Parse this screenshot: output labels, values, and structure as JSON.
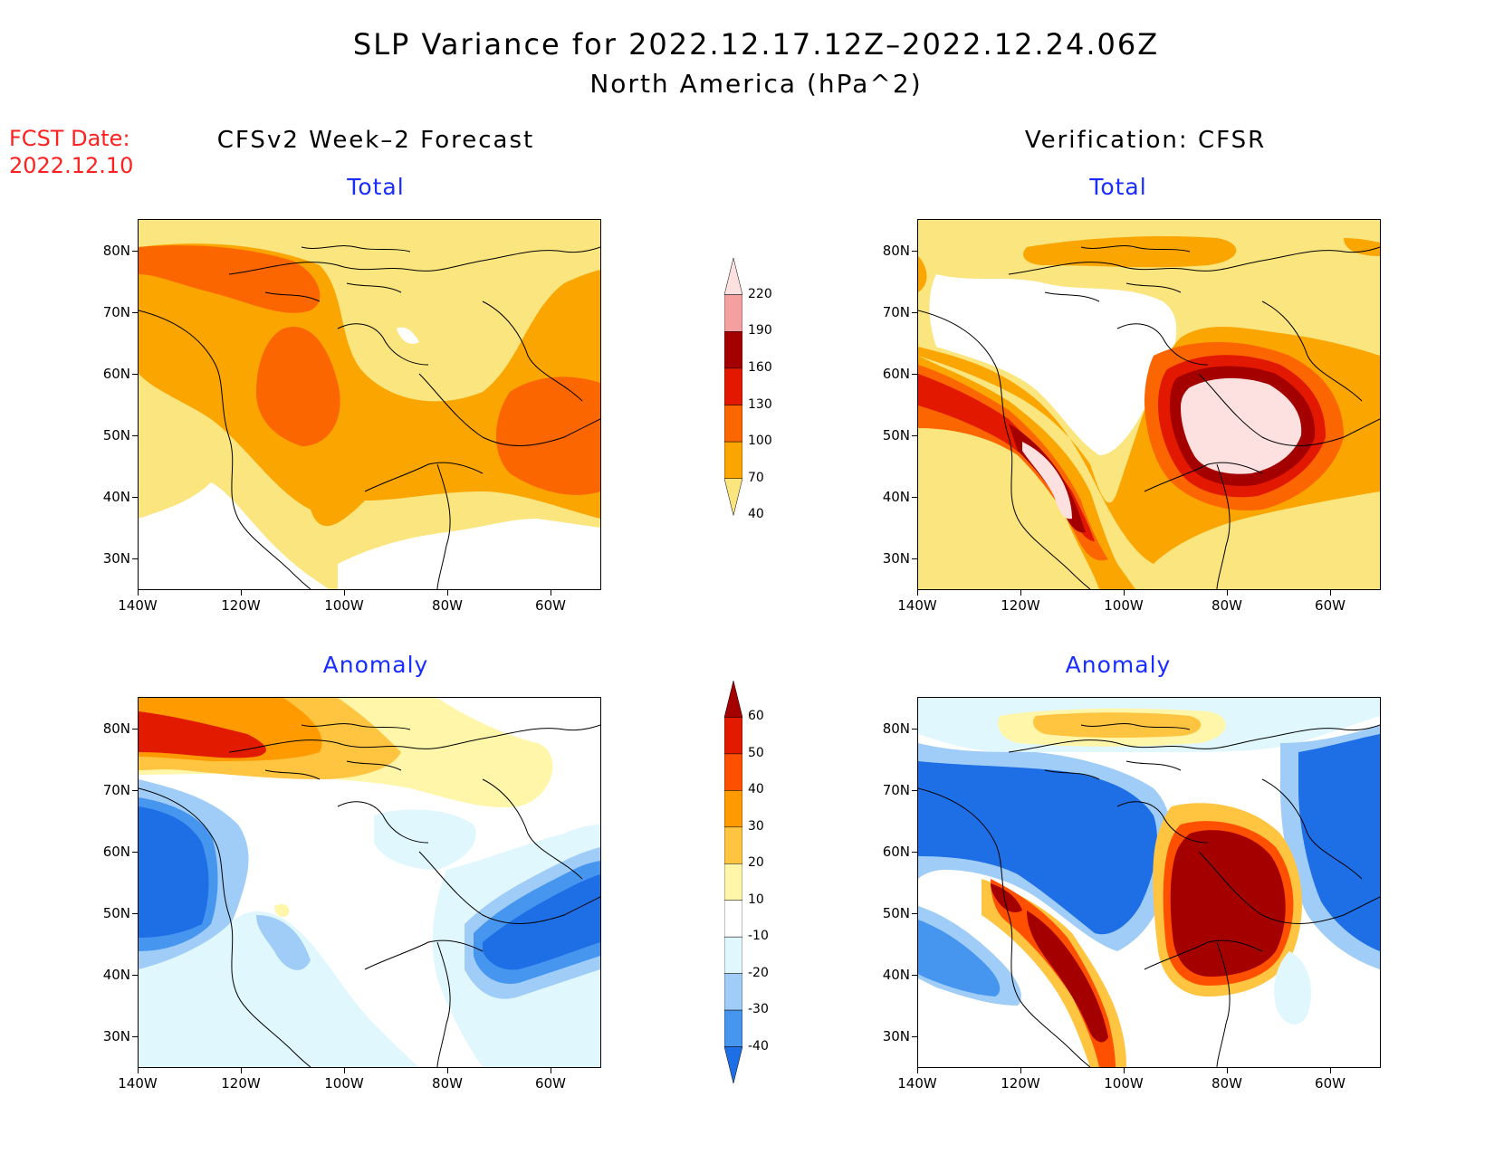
{
  "header": {
    "title": "SLP Variance for 2022.12.17.12Z–2022.12.24.06Z",
    "subtitle": "North America (hPa^2)",
    "fcst_label": "FCST Date:",
    "fcst_date": "2022.12.10"
  },
  "columns": {
    "left": "CFSv2 Week–2 Forecast",
    "right": "Verification: CFSR"
  },
  "panels": {
    "top_left": "Total",
    "top_right": "Total",
    "bottom_left": "Anomaly",
    "bottom_right": "Anomaly"
  },
  "axes": {
    "lat_labels": [
      "80N",
      "70N",
      "60N",
      "50N",
      "40N",
      "30N"
    ],
    "lon_labels": [
      "140W",
      "120W",
      "100W",
      "80W",
      "60W"
    ]
  },
  "colorbar_total": {
    "labels": [
      "40",
      "70",
      "100",
      "130",
      "160",
      "190",
      "220"
    ],
    "colors": [
      "#fbe57e",
      "#fba500",
      "#fb6600",
      "#e21800",
      "#a50000",
      "#f5a0a0",
      "#fde0e0"
    ]
  },
  "colorbar_anomaly": {
    "labels": [
      "-40",
      "-30",
      "-20",
      "-10",
      "10",
      "20",
      "30",
      "40",
      "50",
      "60"
    ],
    "colors": [
      "#1e6ee6",
      "#4696f0",
      "#9fcdf7",
      "#e0f7fd",
      "#ffffff",
      "#fff6aa",
      "#ffc440",
      "#ff9a00",
      "#ff5000",
      "#e11a00",
      "#a50000"
    ]
  }
}
